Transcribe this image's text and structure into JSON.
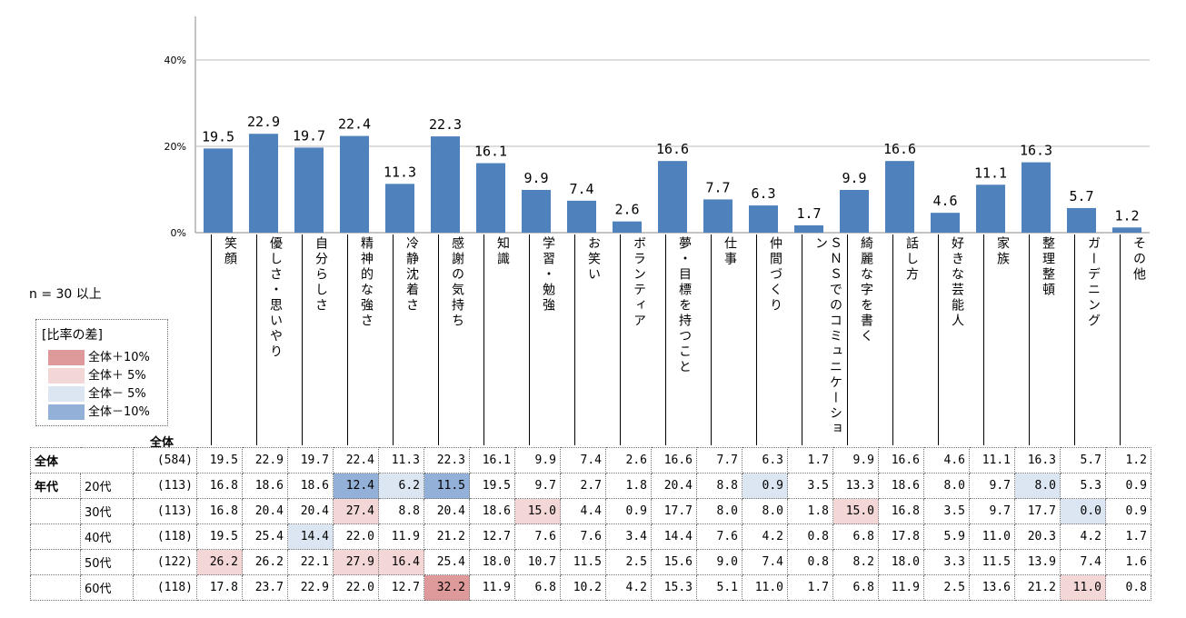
{
  "chart_data": {
    "type": "bar",
    "categories": [
      "笑顔",
      "優しさ・思いやり",
      "自分らしさ",
      "精神的な強さ",
      "冷静沈着さ",
      "感謝の気持ち",
      "知識",
      "学習・勉強",
      "お笑い",
      "ボランティア",
      "夢・目標を持つこと",
      "仕事",
      "仲間づくり",
      "ＳＮＳでのコミュニケーション",
      "綺麗な字を書く",
      "話し方",
      "好きな芸能人",
      "家族",
      "整理整頓",
      "ガーデニング",
      "その他"
    ],
    "values": [
      19.5,
      22.9,
      19.7,
      22.4,
      11.3,
      22.3,
      16.1,
      9.9,
      7.4,
      2.6,
      16.6,
      7.7,
      6.3,
      1.7,
      9.9,
      16.6,
      4.6,
      11.1,
      16.3,
      5.7,
      1.2
    ],
    "value_labels": [
      "19.5",
      "22.9",
      "19.7",
      "22.4",
      "11.3",
      "22.3",
      "16.1",
      "9.9",
      "7.4",
      "2.6",
      "16.6",
      "7.7",
      "6.3",
      "1.7",
      "9.9",
      "16.6",
      "4.6",
      "11.1",
      "16.3",
      "5.7",
      "1.2"
    ],
    "yticks": [
      "0%",
      "20%",
      "40%"
    ],
    "ytick_values": [
      0,
      20,
      40
    ],
    "ylim": [
      0,
      50
    ],
    "bar_color": "#4f81bd",
    "title": "",
    "xlabel": "",
    "ylabel": ""
  },
  "n_label": "n = 30 以上",
  "legend": {
    "title": "[比率の差]",
    "items": [
      {
        "label": "全体＋10%",
        "color": "#de9a9a"
      },
      {
        "label": "全体＋ 5%",
        "color": "#f3d6d6"
      },
      {
        "label": "全体－ 5%",
        "color": "#dce6f2"
      },
      {
        "label": "全体－10%",
        "color": "#93b0d8"
      }
    ]
  },
  "table": {
    "zentai_header": "全体",
    "rows": [
      {
        "group": "全体",
        "sub": "",
        "n": "(584)",
        "values": [
          "19.5",
          "22.9",
          "19.7",
          "22.4",
          "11.3",
          "22.3",
          "16.1",
          "9.9",
          "7.4",
          "2.6",
          "16.6",
          "7.7",
          "6.3",
          "1.7",
          "9.9",
          "16.6",
          "4.6",
          "11.1",
          "16.3",
          "5.7",
          "1.2"
        ],
        "highlights": [
          "",
          "",
          "",
          "",
          "",
          "",
          "",
          "",
          "",
          "",
          "",
          "",
          "",
          "",
          "",
          "",
          "",
          "",
          "",
          "",
          ""
        ]
      },
      {
        "group": "年代",
        "sub": "20代",
        "n": "(113)",
        "values": [
          "16.8",
          "18.6",
          "18.6",
          "12.4",
          "6.2",
          "11.5",
          "19.5",
          "9.7",
          "2.7",
          "1.8",
          "20.4",
          "8.8",
          "0.9",
          "3.5",
          "13.3",
          "18.6",
          "8.0",
          "9.7",
          "8.0",
          "5.3",
          "0.9"
        ],
        "highlights": [
          "",
          "",
          "",
          "dn10",
          "dn5",
          "dn10",
          "",
          "",
          "",
          "",
          "",
          "",
          "dn5",
          "",
          "",
          "",
          "",
          "",
          "dn5",
          "",
          ""
        ]
      },
      {
        "group": "",
        "sub": "30代",
        "n": "(113)",
        "values": [
          "16.8",
          "20.4",
          "20.4",
          "27.4",
          "8.8",
          "20.4",
          "18.6",
          "15.0",
          "4.4",
          "0.9",
          "17.7",
          "8.0",
          "8.0",
          "1.8",
          "15.0",
          "16.8",
          "3.5",
          "9.7",
          "17.7",
          "0.0",
          "0.9"
        ],
        "highlights": [
          "",
          "",
          "",
          "up5",
          "",
          "",
          "",
          "up5",
          "",
          "",
          "",
          "",
          "",
          "",
          "up5",
          "",
          "",
          "",
          "",
          "dn5",
          ""
        ]
      },
      {
        "group": "",
        "sub": "40代",
        "n": "(118)",
        "values": [
          "19.5",
          "25.4",
          "14.4",
          "22.0",
          "11.9",
          "21.2",
          "12.7",
          "7.6",
          "7.6",
          "3.4",
          "14.4",
          "7.6",
          "4.2",
          "0.8",
          "6.8",
          "17.8",
          "5.9",
          "11.0",
          "20.3",
          "4.2",
          "1.7"
        ],
        "highlights": [
          "",
          "",
          "dn5",
          "",
          "",
          "",
          "",
          "",
          "",
          "",
          "",
          "",
          "",
          "",
          "",
          "",
          "",
          "",
          "",
          "",
          ""
        ]
      },
      {
        "group": "",
        "sub": "50代",
        "n": "(122)",
        "values": [
          "26.2",
          "26.2",
          "22.1",
          "27.9",
          "16.4",
          "25.4",
          "18.0",
          "10.7",
          "11.5",
          "2.5",
          "15.6",
          "9.0",
          "7.4",
          "0.8",
          "8.2",
          "18.0",
          "3.3",
          "11.5",
          "13.9",
          "7.4",
          "1.6"
        ],
        "highlights": [
          "up5",
          "",
          "",
          "up5",
          "up5",
          "",
          "",
          "",
          "",
          "",
          "",
          "",
          "",
          "",
          "",
          "",
          "",
          "",
          "",
          "",
          ""
        ]
      },
      {
        "group": "",
        "sub": "60代",
        "n": "(118)",
        "values": [
          "17.8",
          "23.7",
          "22.9",
          "22.0",
          "12.7",
          "32.2",
          "11.9",
          "6.8",
          "10.2",
          "4.2",
          "15.3",
          "5.1",
          "11.0",
          "1.7",
          "6.8",
          "11.9",
          "2.5",
          "13.6",
          "21.2",
          "11.0",
          "0.8"
        ],
        "highlights": [
          "",
          "",
          "",
          "",
          "",
          "up10",
          "",
          "",
          "",
          "",
          "",
          "",
          "",
          "",
          "",
          "",
          "",
          "",
          "",
          "up5",
          ""
        ]
      }
    ]
  }
}
